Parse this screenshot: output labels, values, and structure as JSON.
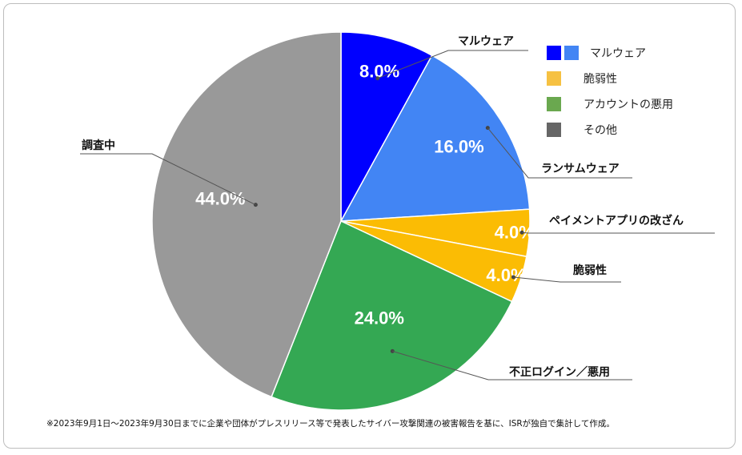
{
  "chart_data": {
    "type": "pie",
    "slices": [
      {
        "label": "マルウェア",
        "value": 8.0,
        "pct_label": "8.0%",
        "color": "#0000ff",
        "pct_color": "#ffffff"
      },
      {
        "label": "ランサムウェア",
        "value": 16.0,
        "pct_label": "16.0%",
        "color": "#4285f4",
        "pct_color": "#ffffff"
      },
      {
        "label": "ペイメントアプリの改ざん",
        "value": 4.0,
        "pct_label": "4.0%",
        "color": "#fbbc04",
        "pct_color": "#ffffff"
      },
      {
        "label": "脆弱性",
        "value": 4.0,
        "pct_label": "4.0%",
        "color": "#fbbc04",
        "pct_color": "#ffffff"
      },
      {
        "label": "不正ログイン／悪用",
        "value": 24.0,
        "pct_label": "24.0%",
        "color": "#34a853",
        "pct_color": "#ffffff"
      },
      {
        "label": "調査中",
        "value": 44.0,
        "pct_label": "44.0%",
        "color": "#999999",
        "pct_color": "#ffffff"
      }
    ],
    "legend": [
      {
        "label": "マルウェア",
        "colors": [
          "#0000ff",
          "#4285f4"
        ]
      },
      {
        "label": "脆弱性",
        "colors": [
          "#f6c142"
        ]
      },
      {
        "label": "アカウントの悪用",
        "colors": [
          "#6aa84f"
        ]
      },
      {
        "label": "その他",
        "colors": [
          "#666666"
        ]
      }
    ],
    "legend_position": "top-right"
  },
  "footnote": "※2023年9月1日～2023年9月30日までに企業や団体がプレスリリース等で発表したサイバー攻撃関連の被害報告を基に、ISRが独自で集計して作成。"
}
